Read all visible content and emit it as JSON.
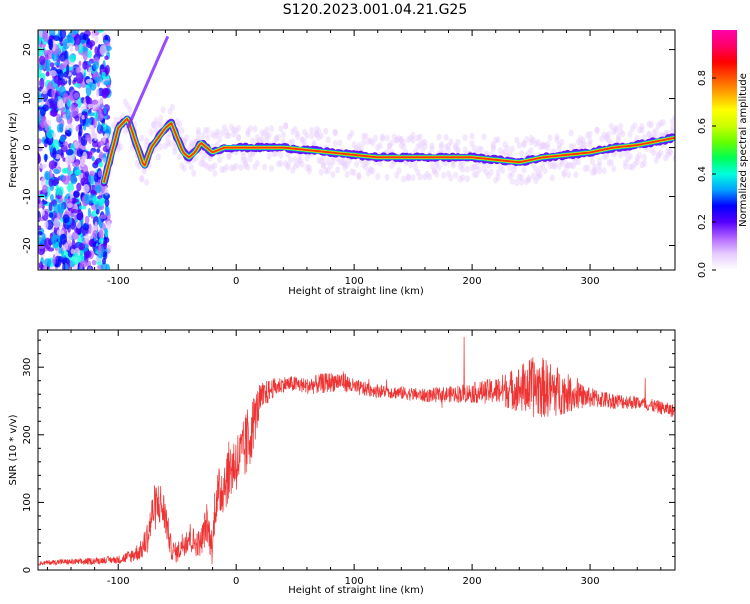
{
  "title": "S120.2023.001.04.21.G25",
  "chart_data": [
    {
      "type": "heatmap",
      "xlabel": "Height of straight line (km)",
      "ylabel": "Frequency (Hz)",
      "xlim": [
        -168,
        372
      ],
      "ylim": [
        -25,
        24
      ],
      "xticks": [
        -100,
        0,
        100,
        200,
        300
      ],
      "yticks": [
        -20,
        -10,
        0,
        10,
        20
      ],
      "ridge": {
        "x": [
          -112,
          -100,
          -92,
          -85,
          -78,
          -72,
          -66,
          -60,
          -55,
          -50,
          -45,
          -40,
          -35,
          -30,
          -25,
          -20,
          -10,
          0,
          20,
          40,
          60,
          80,
          100,
          120,
          140,
          160,
          180,
          200,
          220,
          240,
          260,
          280,
          300,
          320,
          340,
          372
        ],
        "freq": [
          -7,
          4,
          6,
          1,
          -4,
          0,
          2,
          4,
          5,
          2,
          -1,
          -2,
          -1,
          1,
          0,
          -1,
          0,
          0,
          0,
          0,
          -0.5,
          -1,
          -1.5,
          -2,
          -2,
          -2,
          -2,
          -2,
          -2.5,
          -3,
          -2,
          -1.5,
          -1,
          0,
          0.5,
          2
        ]
      },
      "colorbar": {
        "label": "Normalized spectral amplitude",
        "range": [
          0,
          1
        ],
        "ticks": [
          0.0,
          0.2,
          0.4,
          0.6,
          0.8
        ],
        "colors": [
          "#ffffff",
          "#e6ccff",
          "#b266ff",
          "#5500ff",
          "#0000ff",
          "#00a0ff",
          "#00ffdd",
          "#00ff55",
          "#66ff00",
          "#ccff00",
          "#ffff00",
          "#ffaa00",
          "#ff5500",
          "#ff0000",
          "#ff0066",
          "#ff00aa"
        ]
      }
    },
    {
      "type": "line",
      "xlabel": "Height of straight line (km)",
      "ylabel": "SNR (10 * v/v)",
      "xlim": [
        -168,
        372
      ],
      "ylim": [
        0,
        355
      ],
      "xticks": [
        -100,
        0,
        100,
        200,
        300
      ],
      "yticks": [
        0,
        100,
        200,
        300
      ],
      "line_color": "#ee3333",
      "series": [
        {
          "x": [
            -168,
            -150,
            -130,
            -110,
            -100,
            -90,
            -80,
            -75,
            -70,
            -65,
            -60,
            -55,
            -50,
            -45,
            -40,
            -35,
            -30,
            -25,
            -20,
            -18,
            -15,
            -10,
            -5,
            0,
            5,
            10,
            15,
            20,
            25,
            30,
            40,
            50,
            60,
            70,
            80,
            90,
            100,
            120,
            140,
            160,
            180,
            200,
            220,
            240,
            250,
            260,
            270,
            280,
            290,
            300,
            320,
            340,
            360,
            372
          ],
          "y": [
            10,
            12,
            12,
            15,
            15,
            20,
            30,
            50,
            90,
            100,
            80,
            30,
            25,
            40,
            50,
            40,
            40,
            70,
            30,
            100,
            110,
            130,
            150,
            160,
            170,
            190,
            220,
            250,
            260,
            268,
            275,
            275,
            272,
            275,
            278,
            280,
            270,
            265,
            262,
            258,
            260,
            262,
            265,
            268,
            270,
            270,
            265,
            262,
            258,
            255,
            250,
            248,
            240,
            235
          ],
          "noise": [
            3,
            4,
            5,
            5,
            6,
            10,
            15,
            25,
            35,
            35,
            30,
            15,
            15,
            20,
            25,
            20,
            20,
            30,
            25,
            35,
            40,
            45,
            45,
            45,
            45,
            55,
            40,
            25,
            20,
            15,
            12,
            12,
            12,
            15,
            15,
            15,
            12,
            10,
            10,
            10,
            12,
            15,
            20,
            35,
            45,
            45,
            40,
            30,
            20,
            15,
            12,
            10,
            10,
            10
          ]
        }
      ]
    }
  ]
}
